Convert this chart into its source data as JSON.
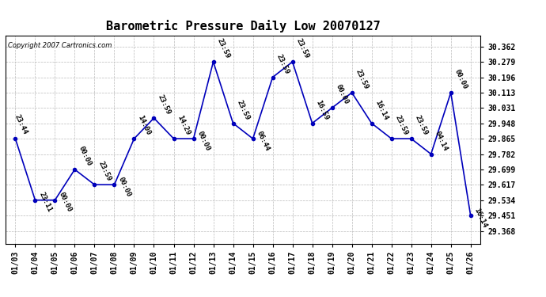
{
  "title": "Barometric Pressure Daily Low 20070127",
  "copyright": "Copyright 2007 Cartronics.com",
  "x_labels": [
    "01/03",
    "01/04",
    "01/05",
    "01/06",
    "01/07",
    "01/08",
    "01/09",
    "01/10",
    "01/11",
    "01/12",
    "01/13",
    "01/14",
    "01/15",
    "01/16",
    "01/17",
    "01/18",
    "01/19",
    "01/20",
    "01/21",
    "01/22",
    "01/23",
    "01/24",
    "01/25",
    "01/26"
  ],
  "x_indices": [
    0,
    1,
    2,
    3,
    4,
    5,
    6,
    7,
    8,
    9,
    10,
    11,
    12,
    13,
    14,
    15,
    16,
    17,
    18,
    19,
    20,
    21,
    22,
    23
  ],
  "y_values": [
    29.865,
    29.534,
    29.534,
    29.699,
    29.617,
    29.617,
    29.865,
    29.976,
    29.865,
    29.865,
    30.279,
    29.948,
    29.865,
    30.196,
    30.279,
    29.948,
    30.031,
    30.113,
    29.948,
    29.865,
    29.865,
    29.782,
    30.113,
    29.451
  ],
  "point_labels": [
    "23:44",
    "23:11",
    "00:00",
    "00:00",
    "23:59",
    "00:00",
    "14:00",
    "23:59",
    "14:29",
    "00:00",
    "23:59",
    "23:59",
    "06:44",
    "23:59",
    "23:59",
    "16:59",
    "00:00",
    "23:59",
    "16:14",
    "23:59",
    "23:59",
    "04:14",
    "00:00",
    "16:14"
  ],
  "line_color": "#0000bb",
  "marker_color": "#0000bb",
  "bg_color": "#ffffff",
  "grid_color": "#bbbbbb",
  "yticks": [
    29.368,
    29.451,
    29.534,
    29.617,
    29.699,
    29.782,
    29.865,
    29.948,
    30.031,
    30.113,
    30.196,
    30.279,
    30.362
  ],
  "ylim": [
    29.3,
    30.42
  ],
  "title_fontsize": 11,
  "label_fontsize": 7,
  "point_label_fontsize": 6.5
}
